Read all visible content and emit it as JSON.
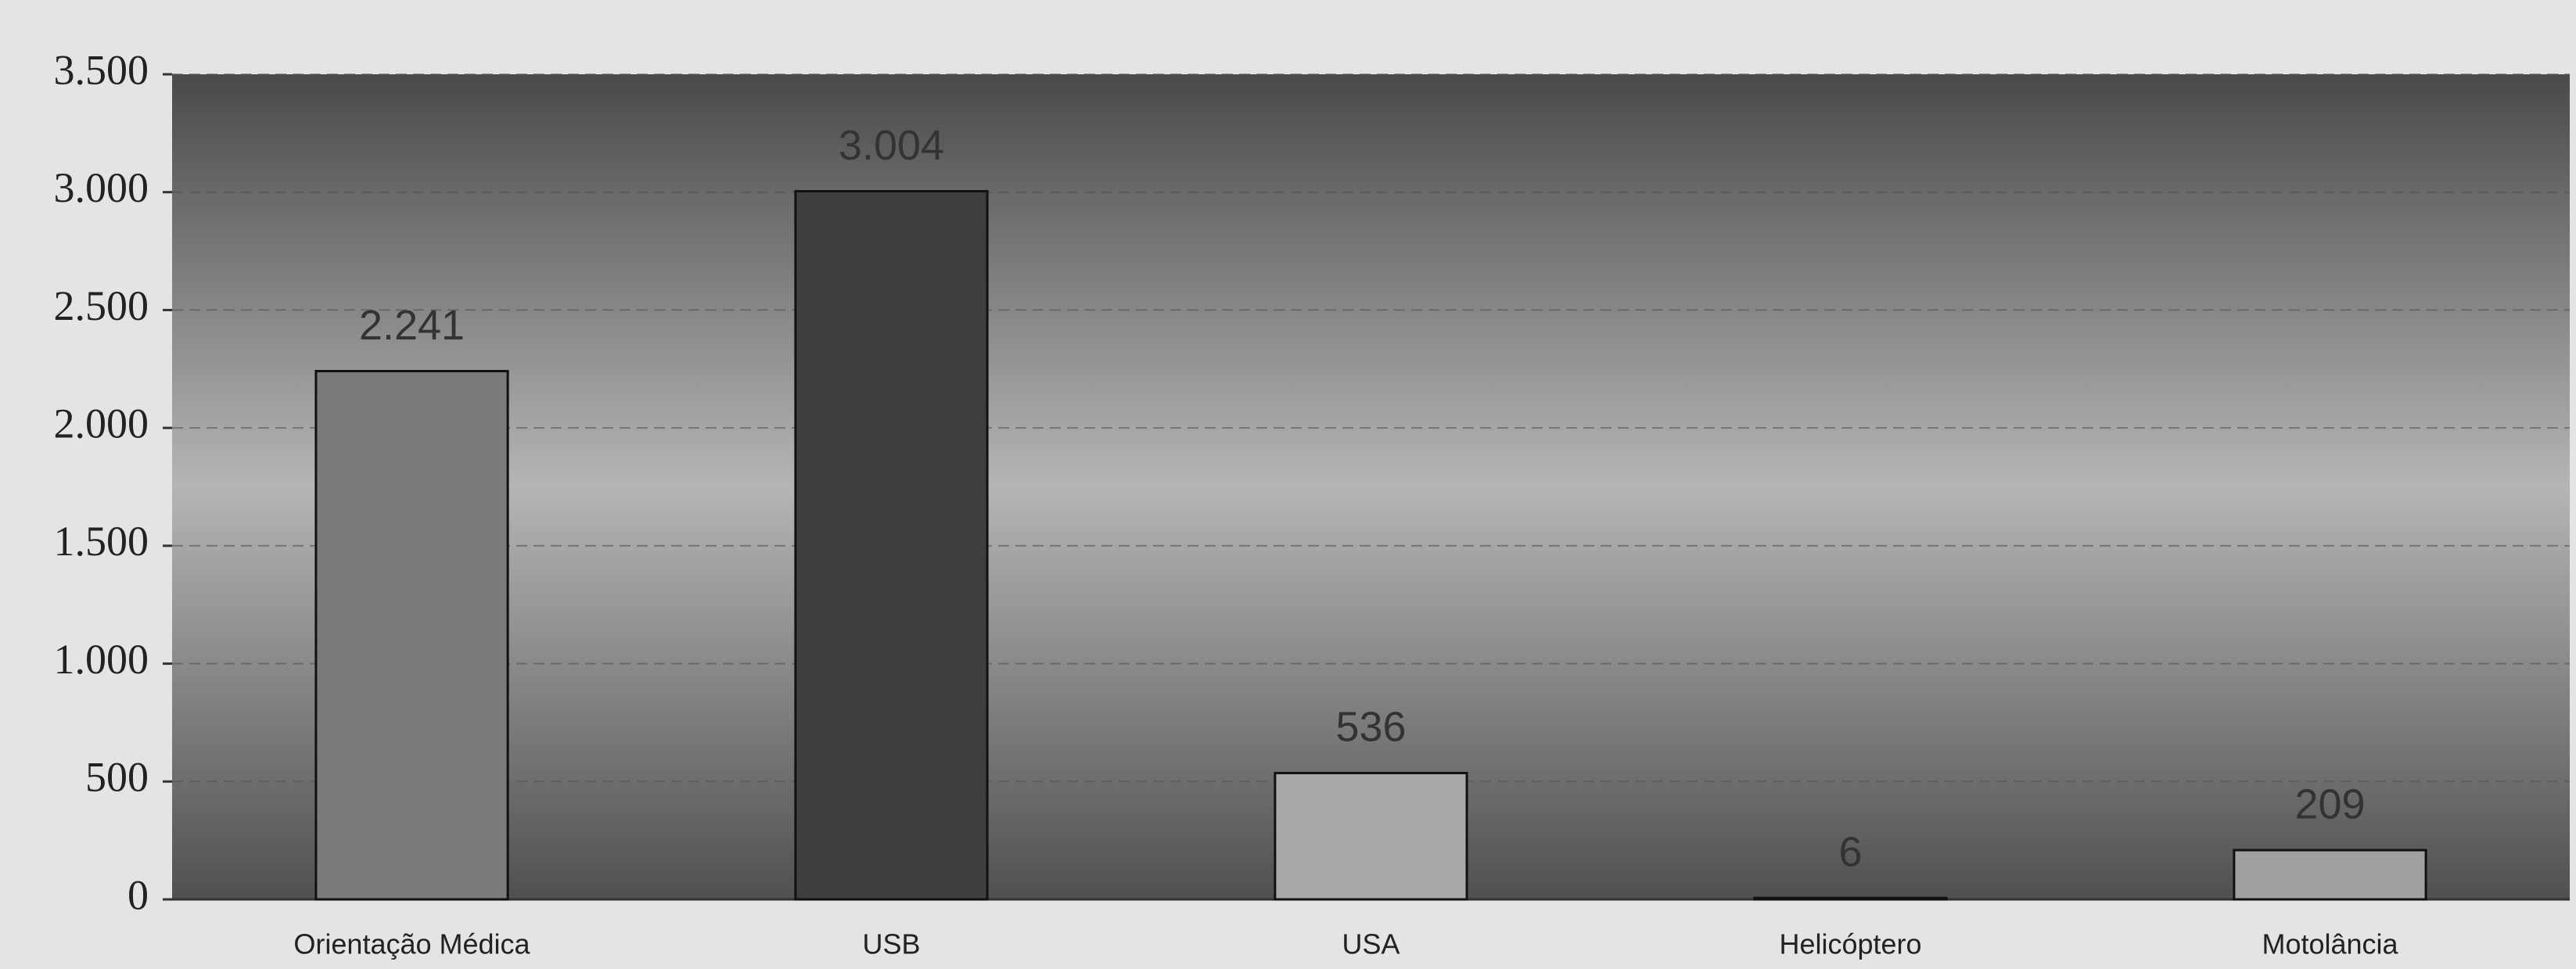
{
  "chart_data": {
    "type": "bar",
    "categories": [
      "Orientação Médica",
      "USB",
      "USA",
      "Helicóptero",
      "Motolância"
    ],
    "values": [
      2241,
      3004,
      536,
      6,
      209
    ],
    "value_labels": [
      "2.241",
      "3.004",
      "536",
      "6",
      "209"
    ],
    "colors": [
      "#7a7a7a",
      "#3e3e3e",
      "#a8a8a8",
      "#8a8a8a",
      "#a0a0a0"
    ],
    "ylim": [
      0,
      3500
    ],
    "yticks": [
      0,
      500,
      {
        "value": 1000,
        "label": "1.000"
      },
      {
        "value": 1500,
        "label": "1.500"
      },
      {
        "value": 2000,
        "label": "2.000"
      },
      {
        "value": 2500,
        "label": "2.500"
      },
      {
        "value": 3000,
        "label": "3.000"
      },
      {
        "value": 3500,
        "label": "3.500"
      }
    ],
    "grid": true
  }
}
